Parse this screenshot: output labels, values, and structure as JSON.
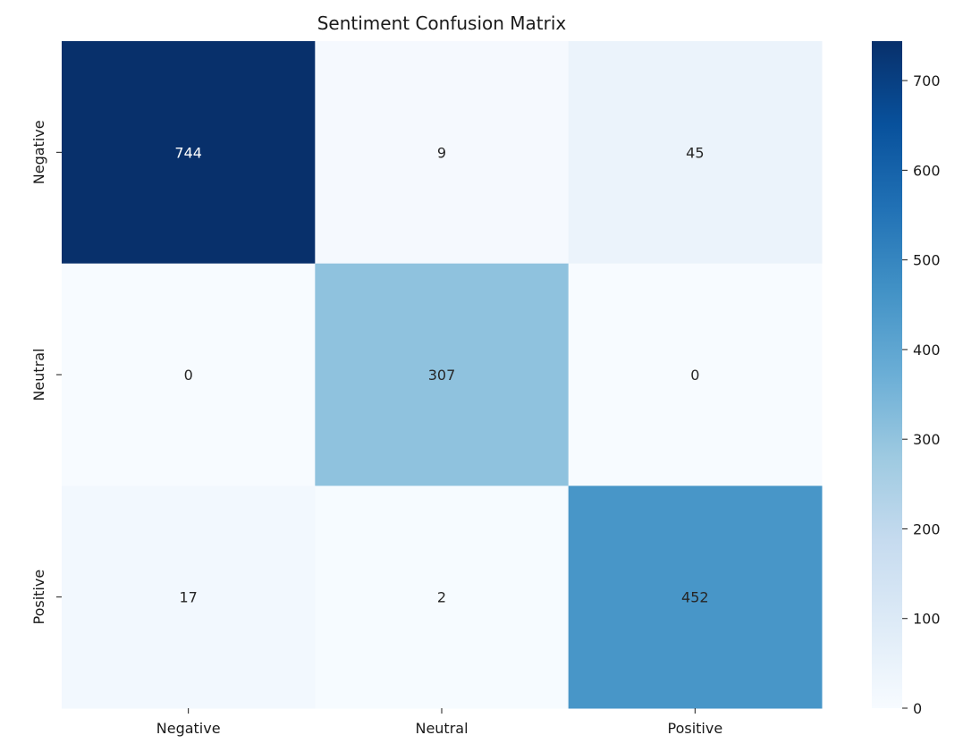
{
  "chart_data": {
    "type": "heatmap",
    "title": "Sentiment Confusion Matrix",
    "xlabel": "",
    "ylabel": "",
    "x_categories": [
      "Negative",
      "Neutral",
      "Positive"
    ],
    "y_categories": [
      "Negative",
      "Neutral",
      "Positive"
    ],
    "values": [
      [
        744,
        9,
        45
      ],
      [
        0,
        307,
        0
      ],
      [
        17,
        2,
        452
      ]
    ],
    "colormap": "Blues",
    "colorbar": {
      "range": [
        0,
        744
      ],
      "ticks": [
        0,
        100,
        200,
        300,
        400,
        500,
        600,
        700
      ]
    },
    "annotated": true,
    "grid": false
  }
}
